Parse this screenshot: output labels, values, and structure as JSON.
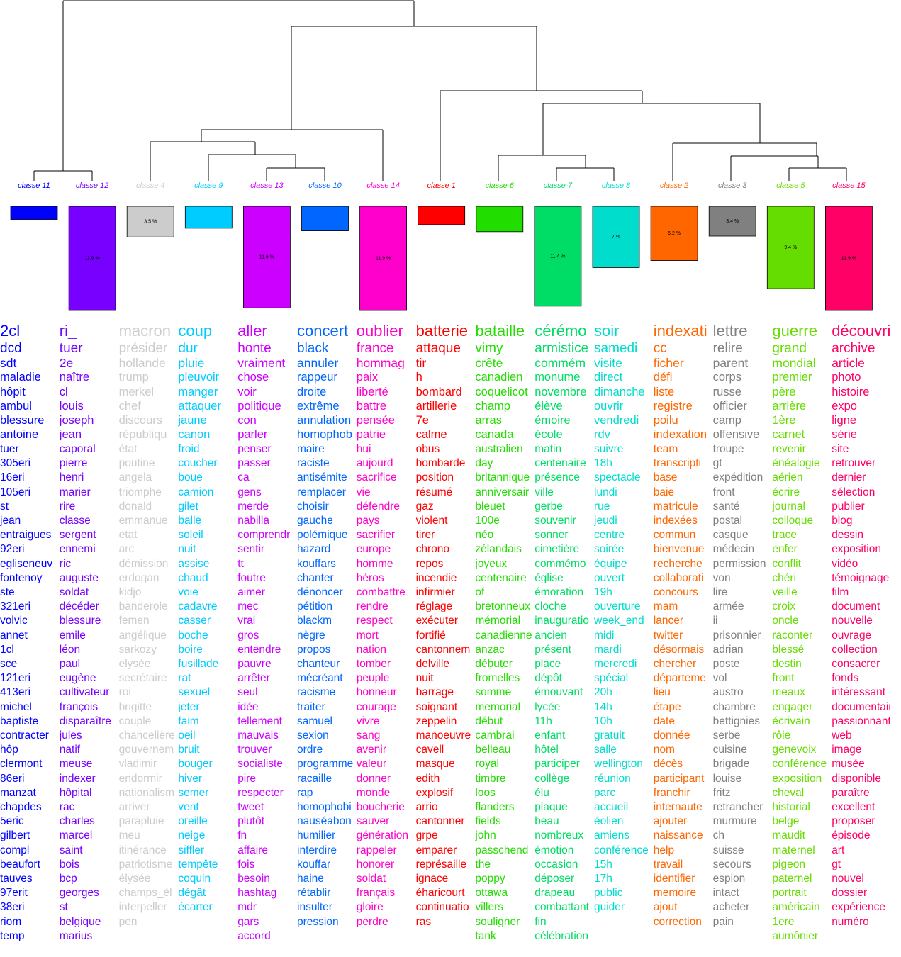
{
  "classes": [
    {
      "label": "classe 11",
      "color": "#0000ff",
      "percent": 1.5,
      "words": [
        "2cl",
        "dcd",
        "sdt",
        "maladie",
        "hôpit",
        "ambul",
        "blessure",
        "antoine",
        "tuer",
        "305eri",
        "16eri",
        "105eri",
        "st",
        "jean",
        "entraigues",
        "92eri",
        "egliseneuv",
        "fontenoy",
        "ste",
        "321eri",
        "volvic",
        "annet",
        "1cl",
        "sce",
        "121eri",
        "413eri",
        "michel",
        "baptiste",
        "contracter",
        "hôp",
        "clermont",
        "86eri",
        "manzat",
        "chapdes",
        "5eric",
        "gilbert",
        "compl",
        "beaufort",
        "tauves",
        "97erit",
        "38eri",
        "riom",
        "temp"
      ]
    },
    {
      "label": "classe 12",
      "color": "#7700ff",
      "percent": 11.9,
      "percent_label": "11.9 %",
      "words": [
        "ri_",
        "tuer",
        "2e",
        "naître",
        "cl",
        "louis",
        "joseph",
        "jean",
        "caporal",
        "pierre",
        "henri",
        "marier",
        "rire",
        "classe",
        "sergent",
        "ennemi",
        "ric",
        "auguste",
        "soldat",
        "décéder",
        "blessure",
        "emile",
        "léon",
        "paul",
        "eugène",
        "cultivateur",
        "françois",
        "disparaître",
        "jules",
        "natif",
        "meuse",
        "indexer",
        "hôpital",
        "rac",
        "charles",
        "marcel",
        "saint",
        "bois",
        "bcp",
        "georges",
        "st",
        "belgique",
        "marius"
      ]
    },
    {
      "label": "classe 4",
      "color": "#cccccc",
      "percent": 3.5,
      "percent_label": "3.5 %",
      "words": [
        "macron",
        "présider",
        "hollande",
        "trump",
        "merkel",
        "chef",
        "discours",
        "républiqu",
        "état",
        "poutine",
        "angela",
        "triomphe",
        "donald",
        "emmanue",
        "etat",
        "arc",
        "démission",
        "erdogan",
        "kidjo",
        "banderole",
        "femen",
        "angélique",
        "sarkozy",
        "elysée",
        "secrétaire",
        "roi",
        "brigitte",
        "couple",
        "chancelière",
        "gouvernem",
        "vladimir",
        "endormir",
        "nationalism",
        "arriver",
        "parapluie",
        "meu",
        "itinérance",
        "patriotisme",
        "élysée",
        "champs_él",
        "interpeller",
        "pen"
      ]
    },
    {
      "label": "classe 9",
      "color": "#00ccff",
      "percent": 2.5,
      "words": [
        "coup",
        "dur",
        "pluie",
        "pleuvoir",
        "manger",
        "attaquer",
        "jaune",
        "canon",
        "froid",
        "coucher",
        "boue",
        "camion",
        "gilet",
        "balle",
        "soleil",
        "nuit",
        "assise",
        "chaud",
        "voie",
        "cadavre",
        "casser",
        "boche",
        "boire",
        "fusillade",
        "rat",
        "sexuel",
        "jeter",
        "faim",
        "oeil",
        "bruit",
        "bouger",
        "hiver",
        "semer",
        "vent",
        "oreille",
        "neige",
        "siffler",
        "tempête",
        "coquin",
        "dégât",
        "écarter"
      ]
    },
    {
      "label": "classe 13",
      "color": "#cc00ff",
      "percent": 11.6,
      "percent_label": "11.6 %",
      "words": [
        "aller",
        "honte",
        "vraiment",
        "chose",
        "voir",
        "politique",
        "con",
        "parler",
        "penser",
        "passer",
        "ca",
        "gens",
        "merde",
        "nabilla",
        "comprendr",
        "sentir",
        "tt",
        "foutre",
        "aimer",
        "mec",
        "vrai",
        "gros",
        "entendre",
        "pauvre",
        "arrêter",
        "seul",
        "idée",
        "tellement",
        "mauvais",
        "trouver",
        "socialiste",
        "pire",
        "respecter",
        "tweet",
        "plutôt",
        "fn",
        "affaire",
        "fois",
        "besoin",
        "hashtag",
        "mdr",
        "gars",
        "accord"
      ]
    },
    {
      "label": "classe 10",
      "color": "#0066ff",
      "percent": 2.8,
      "words": [
        "concert",
        "black",
        "annuler",
        "rappeur",
        "droite",
        "extrême",
        "annulation",
        "homophob",
        "maire",
        "raciste",
        "antisémite",
        "remplacer",
        "choisir",
        "gauche",
        "polémique",
        "hazard",
        "kouffars",
        "chanter",
        "dénoncer",
        "pétition",
        "blackm",
        "nègre",
        "propos",
        "chanteur",
        "mécréant",
        "racisme",
        "traiter",
        "samuel",
        "sexion",
        "ordre",
        "programme",
        "racaille",
        "rap",
        "homophobi",
        "nauséabon",
        "humilier",
        "interdire",
        "kouffar",
        "haine",
        "rétablir",
        "insulter",
        "pression"
      ]
    },
    {
      "label": "classe 14",
      "color": "#ff00cc",
      "percent": 11.9,
      "percent_label": "11.9 %",
      "words": [
        "oublier",
        "france",
        "hommag",
        "paix",
        "liberté",
        "battre",
        "pensée",
        "patrie",
        "hui",
        "aujourd",
        "sacrifice",
        "vie",
        "défendre",
        "pays",
        "sacrifier",
        "europe",
        "homme",
        "héros",
        "combattre",
        "rendre",
        "respect",
        "mort",
        "nation",
        "tomber",
        "peuple",
        "honneur",
        "courage",
        "vivre",
        "sang",
        "avenir",
        "valeur",
        "donner",
        "monde",
        "boucherie",
        "sauver",
        "génération",
        "rappeler",
        "honorer",
        "soldat",
        "français",
        "gloire",
        "perdre"
      ]
    },
    {
      "label": "classe 1",
      "color": "#ff0000",
      "percent": 2.1,
      "words": [
        "batterie",
        "attaque",
        "tir",
        "h",
        "bombard",
        "artillerie",
        "7e",
        "calme",
        "obus",
        "bombarde",
        "position",
        "résumé",
        "gaz",
        "violent",
        "tirer",
        "chrono",
        "repos",
        "incendie",
        "infirmier",
        "réglage",
        "exécuter",
        "fortifié",
        "cantonnem",
        "delville",
        "nuit",
        "barrage",
        "soignant",
        "zeppelin",
        "manoeuvre",
        "cavell",
        "masque",
        "edith",
        "explosif",
        "arrio",
        "cantonner",
        "grpe",
        "emparer",
        "représaille",
        "ignace",
        "éharicourt",
        "continuatio",
        "ras"
      ]
    },
    {
      "label": "classe 6",
      "color": "#22dd00",
      "percent": 2.9,
      "words": [
        "bataille",
        "vimy",
        "crête",
        "canadien",
        "coquelicot",
        "champ",
        "arras",
        "canada",
        "australien",
        "day",
        "britannique",
        "anniversair",
        "bleuet",
        "100e",
        "néo",
        "zélandais",
        "joyeux",
        "centenaire",
        "of",
        "bretonneux",
        "mémorial",
        "canadienne",
        "anzac",
        "débuter",
        "fromelles",
        "somme",
        "memorial",
        "début",
        "cambrai",
        "belleau",
        "royal",
        "timbre",
        "loos",
        "flanders",
        "fields",
        "john",
        "passchend",
        "the",
        "poppy",
        "ottawa",
        "villers",
        "souligner",
        "tank"
      ]
    },
    {
      "label": "classe 7",
      "color": "#00dd66",
      "percent": 11.4,
      "percent_label": "11.4 %",
      "words": [
        "cérémo",
        "armistice",
        "commém",
        "monume",
        "novembre",
        "élève",
        "émoire",
        "école",
        "matin",
        "centenaire",
        "présence",
        "ville",
        "gerbe",
        "souvenir",
        "sonner",
        "cimetière",
        "commémo",
        "église",
        "émoration",
        "cloche",
        "inauguratio",
        "ancien",
        "présent",
        "place",
        "dépôt",
        "émouvant",
        "lycée",
        "11h",
        "enfant",
        "hôtel",
        "participer",
        "collège",
        "élu",
        "plaque",
        "beau",
        "nombreux",
        "émotion",
        "occasion",
        "déposer",
        "drapeau",
        "combattant",
        "fin",
        "célébration"
      ]
    },
    {
      "label": "classe 8",
      "color": "#00ddcc",
      "percent": 7,
      "percent_label": "7 %",
      "words": [
        "soir",
        "samedi",
        "visite",
        "direct",
        "dimanche",
        "ouvrir",
        "vendredi",
        "rdv",
        "suivre",
        "18h",
        "spectacle",
        "lundi",
        "rue",
        "jeudi",
        "centre",
        "soirée",
        "équipe",
        "ouvert",
        "19h",
        "ouverture",
        "week_end",
        "midi",
        "mardi",
        "mercredi",
        "spécial",
        "20h",
        "14h",
        "10h",
        "gratuit",
        "salle",
        "wellington",
        "réunion",
        "parc",
        "accueil",
        "éolien",
        "amiens",
        "conférence",
        "15h",
        "17h",
        "public",
        "guider"
      ]
    },
    {
      "label": "classe 2",
      "color": "#ff6600",
      "percent": 6.2,
      "percent_label": "6.2 %",
      "words": [
        "indexati",
        "cc",
        "ficher",
        "défi",
        "liste",
        "registre",
        "poilu",
        "indexation",
        "team",
        "transcripti",
        "base",
        "baie",
        "matricule",
        "indexées",
        "commun",
        "bienvenue",
        "recherche",
        "collaborati",
        "concours",
        "mam",
        "lancer",
        "twitter",
        "désormais",
        "chercher",
        "départeme",
        "lieu",
        "étape",
        "date",
        "donnée",
        "nom",
        "décès",
        "participant",
        "franchir",
        "internaute",
        "ajouter",
        "naissance",
        "help",
        "travail",
        "identifier",
        "memoire",
        "ajout",
        "correction"
      ]
    },
    {
      "label": "classe 3",
      "color": "#808080",
      "percent": 3.4,
      "percent_label": "3.4 %",
      "words": [
        "lettre",
        "relire",
        "parent",
        "corps",
        "russe",
        "officier",
        "camp",
        "offensive",
        "troupe",
        "gt",
        "expédition",
        "front",
        "santé",
        "postal",
        "casque",
        "médecin",
        "permission",
        "von",
        "lire",
        "armée",
        "ii",
        "prisonnier",
        "adrian",
        "poste",
        "vol",
        "austro",
        "chambre",
        "bettignies",
        "serbe",
        "cuisine",
        "brigade",
        "louise",
        "fritz",
        "retrancher",
        "murmure",
        "ch",
        "suisse",
        "secours",
        "espion",
        "intact",
        "acheter",
        "pain"
      ]
    },
    {
      "label": "classe 5",
      "color": "#66dd00",
      "percent": 9.4,
      "percent_label": "9.4 %",
      "words": [
        "guerre",
        "grand",
        "mondial",
        "premier",
        "père",
        "arrière",
        "1ère",
        "carnet",
        "revenir",
        "énéalogie",
        "aérien",
        "écrire",
        "journal",
        "colloque",
        "trace",
        "enfer",
        "conflit",
        "chéri",
        "veille",
        "croix",
        "oncle",
        "raconter",
        "blessé",
        "destin",
        "front",
        "meaux",
        "engager",
        "écrivain",
        "rôle",
        "genevoix",
        "conférence",
        "exposition",
        "cheval",
        "historial",
        "belge",
        "maudit",
        "maternel",
        "pigeon",
        "paternel",
        "portrait",
        "américain",
        "1ere",
        "aumônier"
      ]
    },
    {
      "label": "classe 15",
      "color": "#ff0066",
      "percent": 11.9,
      "percent_label": "11.9 %",
      "words": [
        "découvrir",
        "archive",
        "article",
        "photo",
        "histoire",
        "expo",
        "ligne",
        "série",
        "site",
        "retrouver",
        "dernier",
        "sélection",
        "publier",
        "blog",
        "dessin",
        "exposition",
        "vidéo",
        "témoignage",
        "film",
        "document",
        "nouvelle",
        "ouvrage",
        "collection",
        "consacrer",
        "fonds",
        "intéressant",
        "documentaire",
        "passionnant",
        "web",
        "image",
        "musée",
        "disponible",
        "paraître",
        "excellent",
        "proposer",
        "épisode",
        "art",
        "gt",
        "nouvel",
        "dossier",
        "expérience",
        "numéro"
      ]
    }
  ]
}
